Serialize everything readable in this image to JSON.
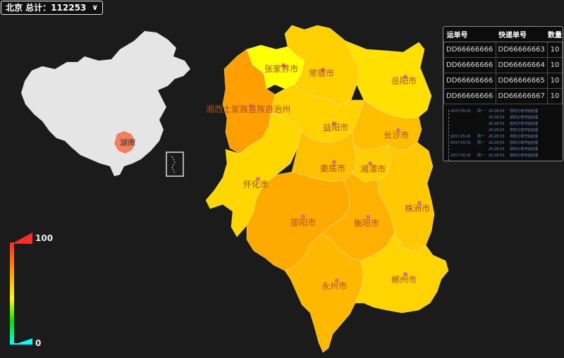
{
  "selector": {
    "label": "北京 总计：112253",
    "chevron": "chevron-down-icon"
  },
  "inset": {
    "highlight_label": "湖南",
    "china_fill": "#e5e5e5",
    "highlight_fill": "#f08060"
  },
  "cities": [
    {
      "id": "zjj",
      "name": "张家界市",
      "fill": "#ffff00"
    },
    {
      "id": "cd",
      "name": "常德市",
      "fill": "#ffd000"
    },
    {
      "id": "yy",
      "name": "岳阳市",
      "fill": "#ffe000"
    },
    {
      "id": "xx",
      "name": "湘西土家族苗族自治州",
      "fill": "#ff9f00"
    },
    {
      "id": "yiy",
      "name": "益阳市",
      "fill": "#ffd200"
    },
    {
      "id": "cs",
      "name": "长沙市",
      "fill": "#ffbe00"
    },
    {
      "id": "hh",
      "name": "怀化市",
      "fill": "#ffd700"
    },
    {
      "id": "ld",
      "name": "娄底市",
      "fill": "#ffc000"
    },
    {
      "id": "xt",
      "name": "湘潭市",
      "fill": "#ffce00"
    },
    {
      "id": "zz",
      "name": "株洲市",
      "fill": "#ffc800"
    },
    {
      "id": "sy",
      "name": "邵阳市",
      "fill": "#ffaa00"
    },
    {
      "id": "hy",
      "name": "衡阳市",
      "fill": "#ffb000"
    },
    {
      "id": "yz",
      "name": "永州市",
      "fill": "#ffb800"
    },
    {
      "id": "cz",
      "name": "郴州市",
      "fill": "#ffd400"
    }
  ],
  "table": {
    "headers": [
      "运单号",
      "快递单号",
      "数量"
    ],
    "rows": [
      [
        "DD66666666",
        "DD66666663",
        "10"
      ],
      [
        "DD66666666",
        "DD66666664",
        "10"
      ],
      [
        "DD66666666",
        "DD66666665",
        "10"
      ],
      [
        "DD66666666",
        "DD66666667",
        "10"
      ]
    ]
  },
  "log": [
    {
      "date": "2017-05-01",
      "day": "周一",
      "time": "20:26:53",
      "text": "您的订单开始处理"
    },
    {
      "date": "",
      "day": "",
      "time": "20:26:53",
      "text": "您的订单开始处理"
    },
    {
      "date": "",
      "day": "",
      "time": "20:26:53",
      "text": "您的订单开始处理"
    },
    {
      "date": "",
      "day": "",
      "time": "20:26:53",
      "text": "您的订单开始处理"
    },
    {
      "date": "2017-05-01",
      "day": "周一",
      "time": "20:26:53",
      "text": "您的订单开始处理"
    },
    {
      "date": "2017-05-01",
      "day": "周一",
      "time": "20:26:53",
      "text": "您的订单开始处理"
    },
    {
      "date": "",
      "day": "",
      "time": "20:26:53",
      "text": "您的订单开始处理"
    },
    {
      "date": "2017-05-01",
      "day": "周一",
      "time": "20:26:53",
      "text": "您的订单开始处理"
    }
  ],
  "legend": {
    "max": "100",
    "min": "0"
  }
}
